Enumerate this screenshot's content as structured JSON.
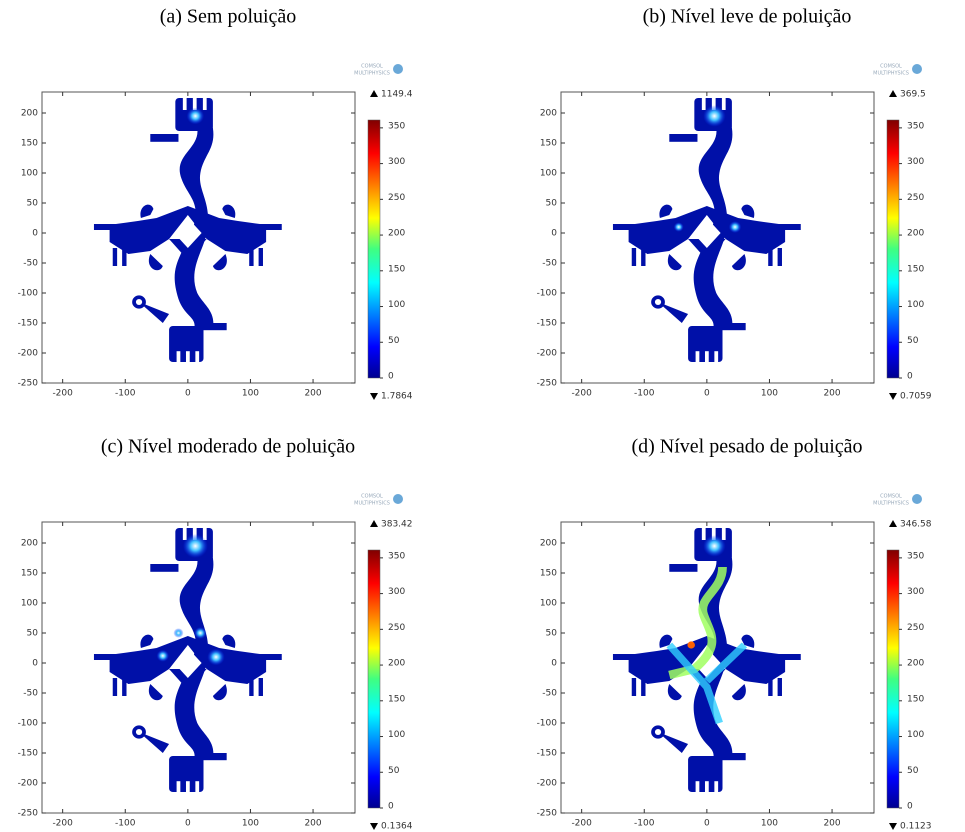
{
  "axes": {
    "xticks": [
      -200,
      -100,
      0,
      100,
      200
    ],
    "yticks": [
      200,
      150,
      100,
      50,
      0,
      -50,
      -100,
      -150,
      -200,
      -250
    ],
    "xlim": [
      -233,
      267
    ],
    "ylim": [
      -250,
      235
    ],
    "colorbar_ticks": [
      0,
      50,
      100,
      150,
      200,
      250,
      300,
      350
    ],
    "colorbar_lim": [
      0,
      361
    ]
  },
  "logo": [
    "COMSOL",
    "MULTIPHYSICS"
  ],
  "panels": [
    {
      "title": "(a) Sem poluição",
      "max": 1149.4,
      "min": 1.7864
    },
    {
      "title": "(b) Nível leve de poluição",
      "max": 369.5,
      "min": 0.7059
    },
    {
      "title": "(c) Nível moderado de poluição",
      "max": 383.42,
      "min": 0.1364
    },
    {
      "title": "(d) Nível pesado de poluição",
      "max": 346.58,
      "min": 0.1123
    }
  ]
}
